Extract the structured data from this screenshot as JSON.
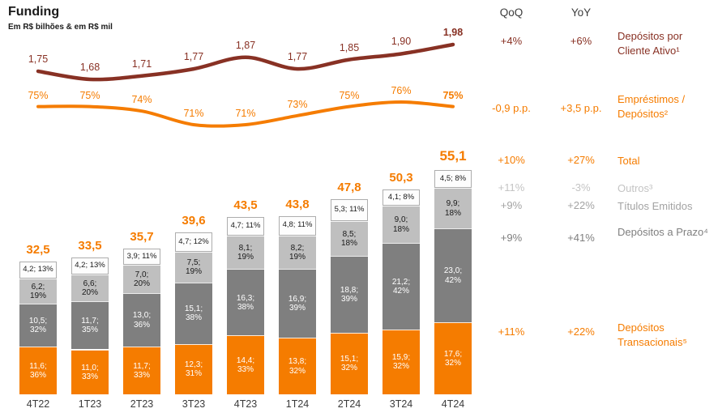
{
  "header": {
    "title": "Funding",
    "subtitle": "Em R$ bilhões & em R$ mil"
  },
  "columns": {
    "qoq": "QoQ",
    "yoy": "YoY"
  },
  "colors": {
    "orange": "#F57C00",
    "dark_brown": "#883124",
    "gray_dark": "#7F7F7F",
    "gray_mid": "#BFBFBF",
    "gray_light": "#C4C4C4"
  },
  "chart_data": {
    "type": "combo: stacked bar + 2 lines",
    "title": "Funding",
    "subtitle": "Em R$ bilhões & em R$ mil",
    "legend_position": "right-labels",
    "categories": [
      "4T22",
      "1T23",
      "2T23",
      "3T23",
      "4T23",
      "1T24",
      "2T24",
      "3T24",
      "4T24"
    ],
    "lines": [
      {
        "name": "Depósitos por Cliente Ativo",
        "unit": "R$ mil",
        "color": "#883124",
        "values": [
          1.75,
          1.68,
          1.71,
          1.77,
          1.87,
          1.77,
          1.85,
          1.9,
          1.98
        ],
        "labels": [
          "1,75",
          "1,68",
          "1,71",
          "1,77",
          "1,87",
          "1,77",
          "1,85",
          "1,90",
          "1,98"
        ]
      },
      {
        "name": "Empréstimos / Depósitos",
        "unit": "%",
        "color": "#F57C00",
        "values": [
          75,
          75,
          74,
          71,
          71,
          73,
          75,
          76,
          75
        ],
        "labels": [
          "75%",
          "75%",
          "74%",
          "71%",
          "71%",
          "73%",
          "75%",
          "76%",
          "75%"
        ]
      }
    ],
    "bars": {
      "unit": "R$ bilhões",
      "totals": [
        32.5,
        33.5,
        35.7,
        39.6,
        43.5,
        43.8,
        47.8,
        50.3,
        55.1
      ],
      "total_labels": [
        "32,5",
        "33,5",
        "35,7",
        "39,6",
        "43,5",
        "43,8",
        "47,8",
        "50,3",
        "55,1"
      ],
      "segments": [
        {
          "id": "depositos-transacionais",
          "name": "Depósitos Transacionais",
          "color": "#F57C00",
          "text_color": "#FFFFFF",
          "values": [
            11.6,
            11.0,
            11.7,
            12.3,
            14.4,
            13.8,
            15.1,
            15.9,
            17.6
          ],
          "value_labels": [
            "11,6",
            "11,0",
            "11,7",
            "12,3",
            "14,4",
            "13,8",
            "15,1",
            "15,9",
            "17,6"
          ],
          "pct_labels": [
            "36%",
            "33%",
            "33%",
            "31%",
            "33%",
            "32%",
            "32%",
            "32%",
            "32%"
          ]
        },
        {
          "id": "depositos-a-prazo",
          "name": "Depósitos a Prazo",
          "color": "#7F7F7F",
          "text_color": "#FFFFFF",
          "values": [
            10.5,
            11.7,
            13.0,
            15.1,
            16.3,
            16.9,
            18.8,
            21.2,
            23.0
          ],
          "value_labels": [
            "10,5",
            "11,7",
            "13,0",
            "15,1",
            "16,3",
            "16,9",
            "18,8",
            "21,2",
            "23,0"
          ],
          "pct_labels": [
            "32%",
            "35%",
            "36%",
            "38%",
            "38%",
            "39%",
            "39%",
            "42%",
            "42%"
          ]
        },
        {
          "id": "titulos-emitidos",
          "name": "Títulos Emitidos",
          "color": "#BFBFBF",
          "text_color": "#1a1a1a",
          "values": [
            6.2,
            6.6,
            7.0,
            7.5,
            8.1,
            8.2,
            8.5,
            9.0,
            9.9
          ],
          "value_labels": [
            "6,2",
            "6,6",
            "7,0",
            "7,5",
            "8,1",
            "8,2",
            "8,5",
            "9,0",
            "9,9"
          ],
          "pct_labels": [
            "19%",
            "20%",
            "20%",
            "19%",
            "19%",
            "19%",
            "18%",
            "18%",
            "18%"
          ]
        },
        {
          "id": "outros",
          "name": "Outros",
          "color": "#FDFDFD",
          "text_color": "#1a1a1a",
          "border_color": "#ADADAD",
          "values": [
            4.2,
            4.2,
            3.9,
            4.7,
            4.7,
            4.8,
            5.3,
            4.1,
            4.5
          ],
          "value_labels": [
            "4,2",
            "4,2",
            "3,9",
            "4,7",
            "4,7",
            "4,8",
            "5,3",
            "4,1",
            "4,5"
          ],
          "pct_labels": [
            "13%",
            "13%",
            "11%",
            "12%",
            "11%",
            "11%",
            "11%",
            "8%",
            "8%"
          ]
        }
      ]
    }
  },
  "rows": [
    {
      "label": "Depósitos por Cliente Ativo¹",
      "qoq": "+4%",
      "yoy": "+6%",
      "color": "#883124"
    },
    {
      "label": "Empréstimos / Depósitos²",
      "qoq": "-0,9 p.p.",
      "yoy": "+3,5 p.p.",
      "color": "#F57C00"
    },
    {
      "label": "Total",
      "qoq": "+10%",
      "yoy": "+27%",
      "color": "#F57C00"
    },
    {
      "label": "Outros³",
      "qoq": "+11%",
      "yoy": "-3%",
      "color": "#C4C4C4"
    },
    {
      "label": "Títulos Emitidos",
      "qoq": "+9%",
      "yoy": "+22%",
      "color": "#A3A3A3"
    },
    {
      "label": "Depósitos a Prazo⁴",
      "qoq": "+9%",
      "yoy": "+41%",
      "color": "#7F7F7F"
    },
    {
      "label": "Depósitos Transacionais⁵",
      "qoq": "+11%",
      "yoy": "+22%",
      "color": "#F57C00"
    }
  ]
}
